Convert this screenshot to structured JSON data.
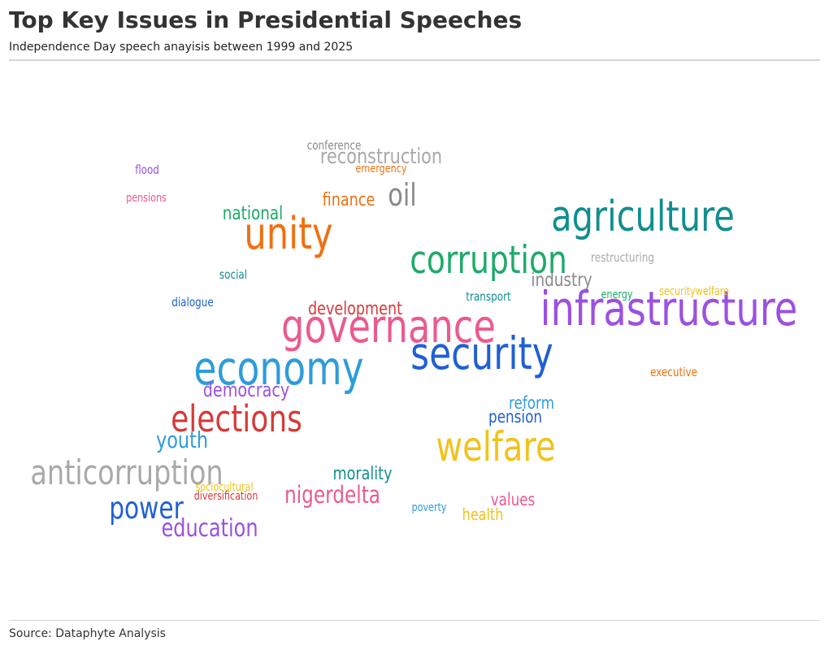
{
  "header": {
    "title": "Top Key Issues in Presidential Speeches",
    "subtitle": "Independence Day speech anayisis between 1999 and 2025"
  },
  "footer": {
    "source": "Source: Dataphyte Analysis"
  },
  "chart_data": {
    "type": "wordcloud",
    "words": [
      {
        "text": "infrastructure",
        "weight": 58,
        "color": "#9b51e0"
      },
      {
        "text": "economy",
        "weight": 57,
        "color": "#2d9cdb"
      },
      {
        "text": "governance",
        "weight": 56,
        "color": "#eb5a8f"
      },
      {
        "text": "security",
        "weight": 55,
        "color": "#1f5fd6"
      },
      {
        "text": "unity",
        "weight": 54,
        "color": "#f07010"
      },
      {
        "text": "agriculture",
        "weight": 52,
        "color": "#128e8e"
      },
      {
        "text": "welfare",
        "weight": 50,
        "color": "#f2c21a"
      },
      {
        "text": "corruption",
        "weight": 47,
        "color": "#1eaa6a"
      },
      {
        "text": "elections",
        "weight": 45,
        "color": "#d63a3a"
      },
      {
        "text": "anticorruption",
        "weight": 42,
        "color": "#a9a9a9"
      },
      {
        "text": "oil",
        "weight": 38,
        "color": "#8a8a8a"
      },
      {
        "text": "power",
        "weight": 37,
        "color": "#1f5fd6"
      },
      {
        "text": "education",
        "weight": 30,
        "color": "#9b51e0"
      },
      {
        "text": "nigerdelta",
        "weight": 29,
        "color": "#eb5a8f"
      },
      {
        "text": "youth",
        "weight": 28,
        "color": "#2d9cdb"
      },
      {
        "text": "reconstruction",
        "weight": 26,
        "color": "#a9a9a9"
      },
      {
        "text": "democracy",
        "weight": 24,
        "color": "#9b51e0"
      },
      {
        "text": "industry",
        "weight": 23,
        "color": "#8a8a8a"
      },
      {
        "text": "national",
        "weight": 23,
        "color": "#1eaa6a"
      },
      {
        "text": "development",
        "weight": 22,
        "color": "#d63a3a"
      },
      {
        "text": "morality",
        "weight": 22,
        "color": "#128e8e"
      },
      {
        "text": "finance",
        "weight": 22,
        "color": "#f07010"
      },
      {
        "text": "pension",
        "weight": 21,
        "color": "#1f5fd6"
      },
      {
        "text": "reform",
        "weight": 21,
        "color": "#2d9cdb"
      },
      {
        "text": "values",
        "weight": 21,
        "color": "#eb5a8f"
      },
      {
        "text": "health",
        "weight": 20,
        "color": "#f2c21a"
      },
      {
        "text": "restructuring",
        "weight": 15,
        "color": "#a9a9a9"
      },
      {
        "text": "executive",
        "weight": 15,
        "color": "#f07010"
      },
      {
        "text": "transport",
        "weight": 15,
        "color": "#128e8e"
      },
      {
        "text": "social",
        "weight": 15,
        "color": "#128e8e"
      },
      {
        "text": "dialogue",
        "weight": 15,
        "color": "#1f5fd6"
      },
      {
        "text": "flood",
        "weight": 15,
        "color": "#9b51e0"
      },
      {
        "text": "conference",
        "weight": 15,
        "color": "#8a8a8a"
      },
      {
        "text": "energy",
        "weight": 14,
        "color": "#1eaa6a"
      },
      {
        "text": "poverty",
        "weight": 14,
        "color": "#2d9cdb"
      },
      {
        "text": "pensions",
        "weight": 14,
        "color": "#eb5a8f"
      },
      {
        "text": "emergency",
        "weight": 14,
        "color": "#f07010"
      },
      {
        "text": "diversification",
        "weight": 14,
        "color": "#d63a3a"
      },
      {
        "text": "sociocultural",
        "weight": 14,
        "color": "#f2c21a"
      },
      {
        "text": "securitywelfare",
        "weight": 14,
        "color": "#f2c21a"
      }
    ]
  }
}
